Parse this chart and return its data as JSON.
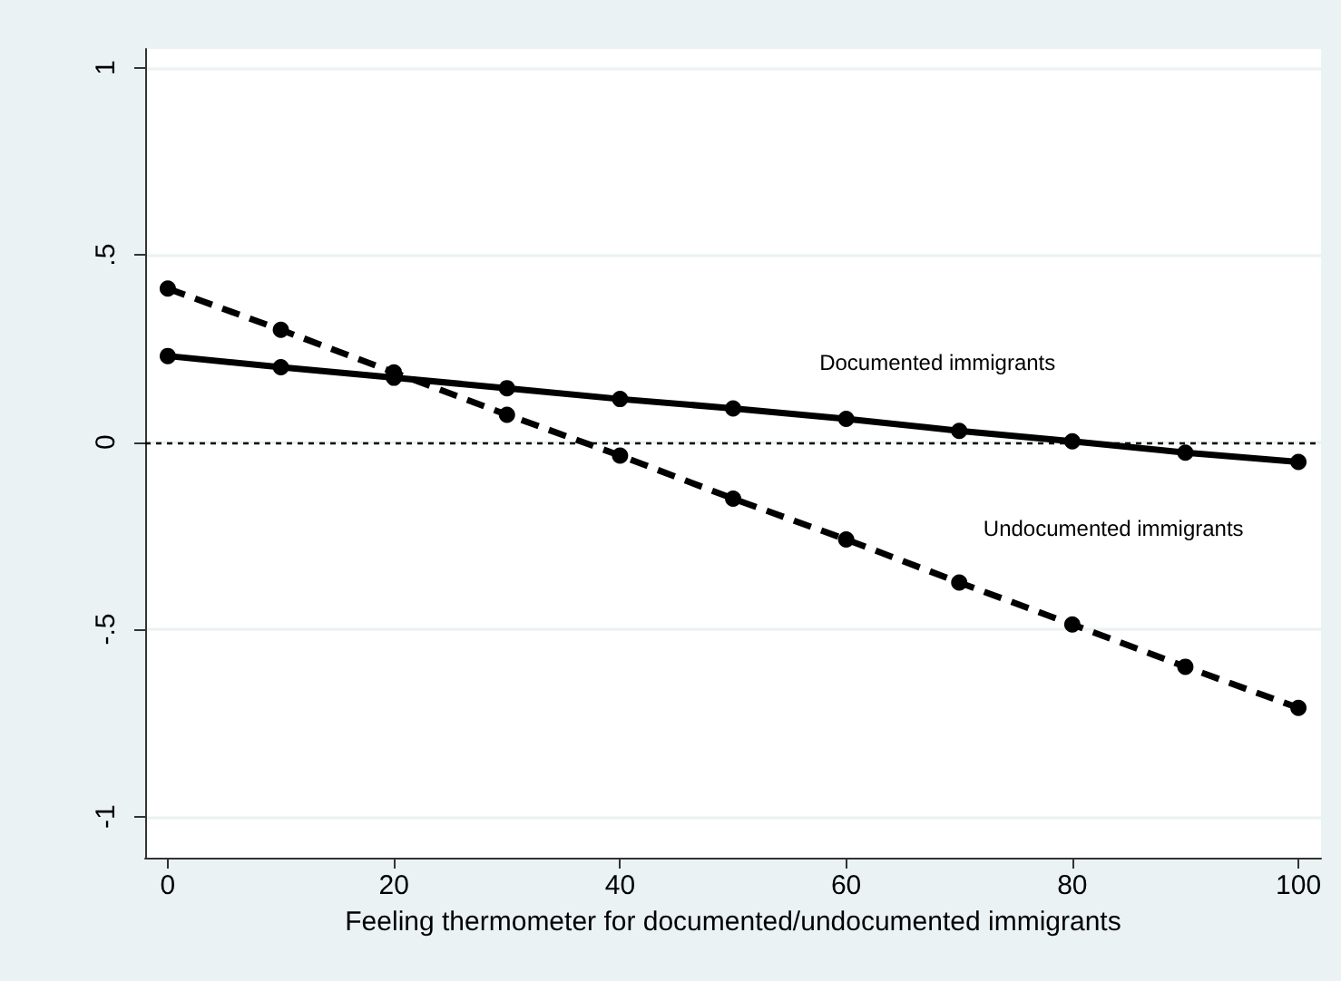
{
  "chart_data": {
    "type": "line",
    "xlabel": "Feeling thermometer for documented/undocumented immigrants",
    "x": [
      0,
      10,
      20,
      30,
      40,
      50,
      60,
      70,
      80,
      90,
      100
    ],
    "series": [
      {
        "name": "Documented immigrants",
        "color": "#000000",
        "line_style": "solid",
        "values": [
          0.23,
          0.2,
          0.172,
          0.144,
          0.115,
          0.09,
          0.062,
          0.03,
          0.002,
          -0.028,
          -0.053
        ]
      },
      {
        "name": "Undocumented immigrants",
        "color": "#000000",
        "line_style": "dashed",
        "values": [
          0.41,
          0.3,
          0.186,
          0.073,
          -0.036,
          -0.151,
          -0.26,
          -0.375,
          -0.487,
          -0.6,
          -0.71
        ]
      }
    ],
    "xlim": [
      -2,
      102
    ],
    "xticks": [
      0,
      20,
      40,
      60,
      80,
      100
    ],
    "ylim": [
      -1.11,
      1.05
    ],
    "yticks": [
      {
        "value": -1,
        "label": "-1"
      },
      {
        "value": -0.5,
        "label": "-.5"
      },
      {
        "value": 0,
        "label": "0"
      },
      {
        "value": 0.5,
        "label": ".5"
      },
      {
        "value": 1,
        "label": "1"
      }
    ],
    "grid": "y",
    "legend": false,
    "marker": "circle",
    "ref_lines": [
      {
        "axis": "y",
        "value": 0,
        "line_style": "dotted",
        "color": "#000000"
      }
    ]
  }
}
